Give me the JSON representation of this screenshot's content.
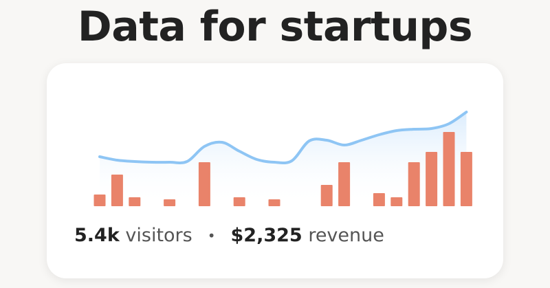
{
  "title": "Data for startups",
  "chart_data": {
    "type": "combo",
    "ylim": [
      0,
      140
    ],
    "series": [
      {
        "type": "area-line",
        "color": "#8ec5f4",
        "values": [
          72,
          67,
          65,
          64,
          64,
          65,
          87,
          93,
          80,
          68,
          64,
          66,
          95,
          96,
          89,
          96,
          104,
          110,
          112,
          113,
          120,
          137
        ]
      },
      {
        "type": "bar",
        "color": "#e9836a",
        "values": [
          17,
          46,
          13,
          null,
          10,
          null,
          64,
          null,
          13,
          null,
          10,
          null,
          null,
          31,
          64,
          null,
          19,
          13,
          64,
          79,
          108,
          79
        ]
      }
    ]
  },
  "stats": {
    "visitors_value": "5.4k",
    "visitors_label": "visitors",
    "separator": "•",
    "revenue_value": "$2,325",
    "revenue_label": "revenue"
  }
}
